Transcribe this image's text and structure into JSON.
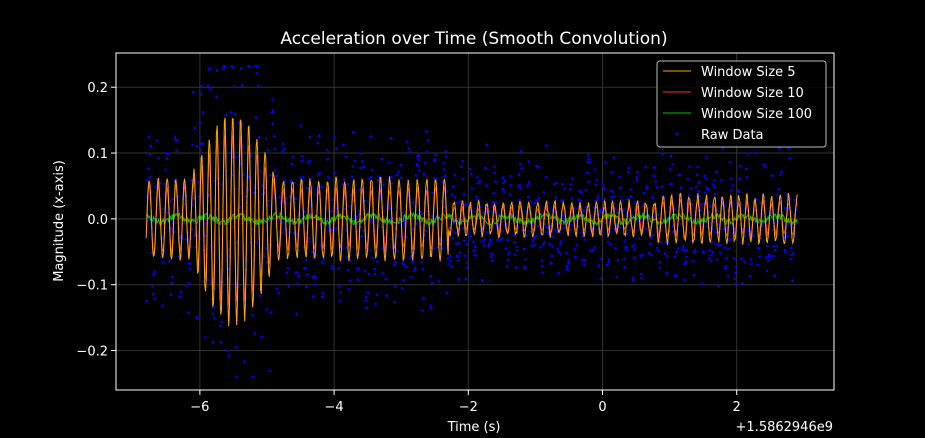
{
  "chart_data": {
    "type": "line",
    "title": "Acceleration over Time (Smooth Convolution)",
    "xlabel": "Time (s)",
    "ylabel": "Magnitude (x-axis)",
    "x_offset_label": "+1.5862946e9",
    "xlim": [
      -7.25,
      3.45
    ],
    "ylim": [
      -0.26,
      0.252
    ],
    "xticks": [
      -6,
      -4,
      -2,
      0,
      2
    ],
    "xtick_labels": [
      "−6",
      "−4",
      "−2",
      "0",
      "2"
    ],
    "yticks": [
      -0.2,
      -0.1,
      0.0,
      0.1,
      0.2
    ],
    "ytick_labels": [
      "−0.2",
      "−0.1",
      "0.0",
      "0.1",
      "0.2"
    ],
    "grid": true,
    "legend_position": "top-right",
    "x_range": [
      -6.8,
      2.9
    ],
    "series": [
      {
        "name": "Window Size 5",
        "kind": "line",
        "color": "#ffa500",
        "bursts": [
          {
            "t0": -6.8,
            "t1": -6.1,
            "amp": 0.06,
            "freq": 7.5
          },
          {
            "t0": -6.1,
            "t1": -4.9,
            "amp": 0.16,
            "freq": 8.5
          },
          {
            "t0": -4.9,
            "t1": -2.3,
            "amp": 0.06,
            "freq": 7.5
          },
          {
            "t0": -2.3,
            "t1": 0.8,
            "amp": 0.025,
            "freq": 8.0
          },
          {
            "t0": 0.8,
            "t1": 2.9,
            "amp": 0.035,
            "freq": 8.0
          }
        ]
      },
      {
        "name": "Window Size 10",
        "kind": "line",
        "color": "#ff2a1a",
        "bursts": [
          {
            "t0": -6.8,
            "t1": -6.1,
            "amp": 0.05,
            "freq": 7.5
          },
          {
            "t0": -6.1,
            "t1": -4.9,
            "amp": 0.13,
            "freq": 8.5
          },
          {
            "t0": -4.9,
            "t1": -2.3,
            "amp": 0.045,
            "freq": 7.5
          },
          {
            "t0": -2.3,
            "t1": 0.8,
            "amp": 0.018,
            "freq": 8.0
          },
          {
            "t0": 0.8,
            "t1": 2.9,
            "amp": 0.025,
            "freq": 8.0
          }
        ]
      },
      {
        "name": "Window Size 100",
        "kind": "line",
        "color": "#00c000",
        "bursts": [
          {
            "t0": -6.8,
            "t1": 2.9,
            "amp": 0.005,
            "freq": 2.0
          }
        ]
      },
      {
        "name": "Raw Data",
        "kind": "scatter",
        "color": "#0000ff",
        "bursts": [
          {
            "t0": -6.8,
            "t1": -6.1,
            "amp": 0.07,
            "freq": 7.5
          },
          {
            "t0": -6.1,
            "t1": -4.9,
            "amp": 0.15,
            "freq": 8.5
          },
          {
            "t0": -4.9,
            "t1": -2.3,
            "amp": 0.07,
            "freq": 7.5
          },
          {
            "t0": -2.3,
            "t1": 0.8,
            "amp": 0.045,
            "freq": 8.0
          },
          {
            "t0": 0.8,
            "t1": 2.9,
            "amp": 0.05,
            "freq": 8.0
          }
        ]
      }
    ],
    "colors": {
      "background": "#000000",
      "axes": "#ffffff",
      "grid": "#333333",
      "text": "#ffffff"
    }
  }
}
